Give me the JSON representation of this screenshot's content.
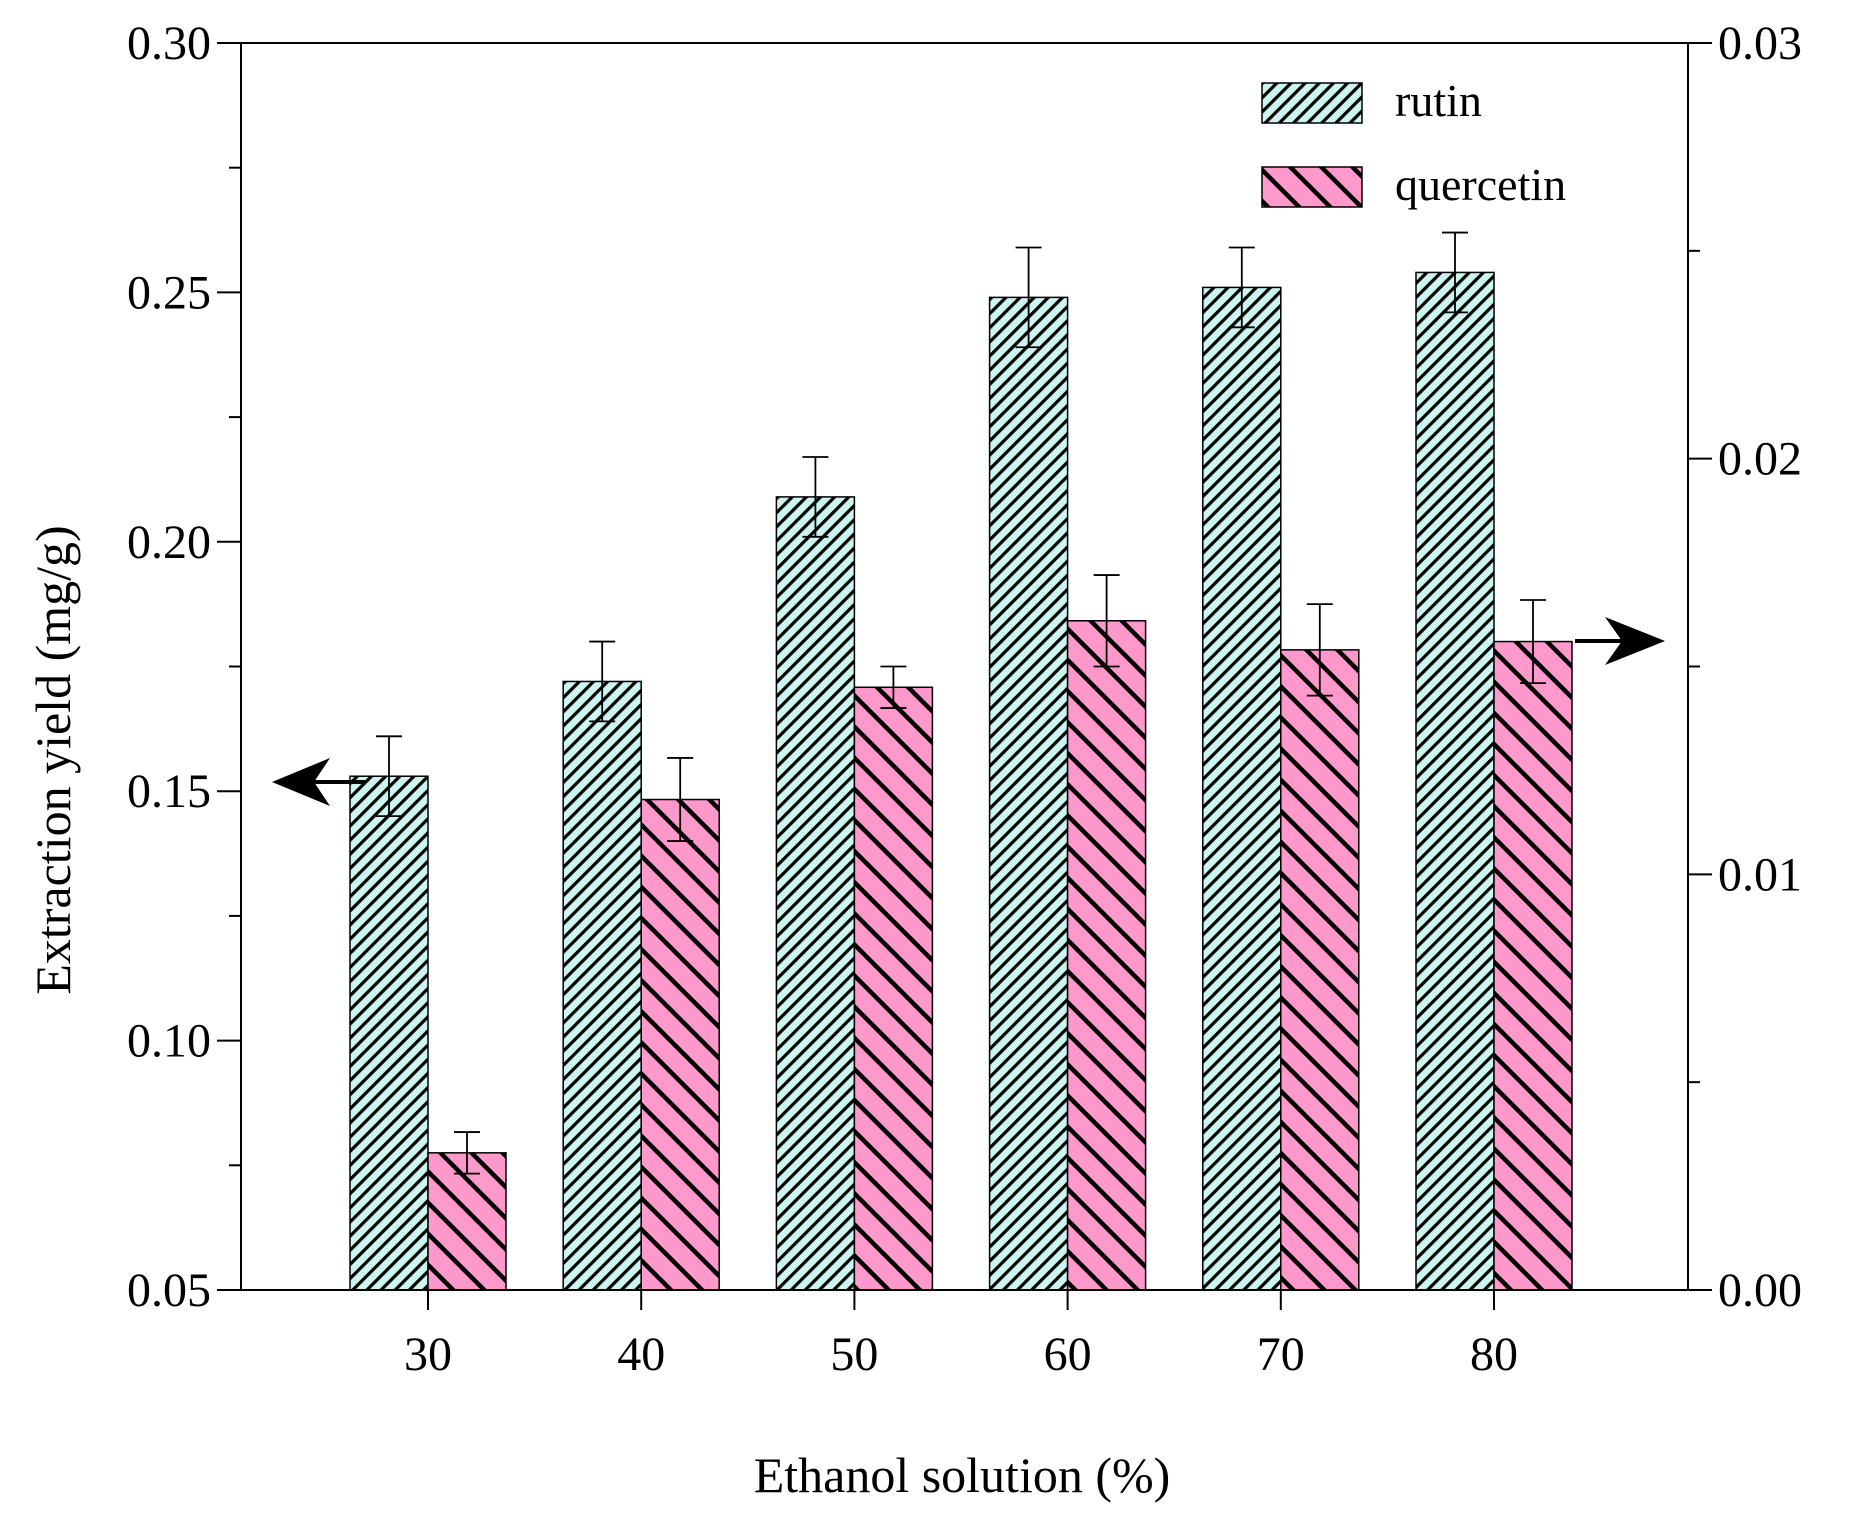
{
  "chart_data": {
    "type": "bar",
    "xlabel": "Ethanol solution (%)",
    "ylabel": "Extraction yield (mg/g)",
    "categories": [
      "30",
      "40",
      "50",
      "60",
      "70",
      "80"
    ],
    "left_axis": {
      "range": [
        0.05,
        0.3
      ],
      "ticks": [
        0.05,
        0.1,
        0.15,
        0.2,
        0.25,
        0.3
      ],
      "tick_labels": [
        "0.05",
        "0.10",
        "0.15",
        "0.20",
        "0.25",
        "0.30"
      ]
    },
    "right_axis": {
      "range": [
        0.0,
        0.03
      ],
      "ticks": [
        0.0,
        0.01,
        0.02,
        0.03
      ],
      "tick_labels": [
        "0.00",
        "0.01",
        "0.02",
        "0.03"
      ]
    },
    "series": [
      {
        "name": "rutin",
        "axis": "left",
        "color": "#ccf5f0",
        "values": [
          0.153,
          0.172,
          0.209,
          0.249,
          0.251,
          0.254
        ],
        "errors": [
          0.008,
          0.008,
          0.008,
          0.01,
          0.008,
          0.008
        ]
      },
      {
        "name": "quercetin",
        "axis": "right",
        "color": "#ff99cc",
        "values": [
          0.0033,
          0.0118,
          0.0145,
          0.0161,
          0.0154,
          0.0156
        ],
        "errors": [
          0.0005,
          0.001,
          0.0005,
          0.0011,
          0.0011,
          0.001
        ]
      }
    ],
    "legend": {
      "position": "top-right",
      "entries": [
        "rutin",
        "quercetin"
      ]
    },
    "annotations": [
      {
        "type": "arrow",
        "direction": "left",
        "series": "rutin",
        "points_to": "left-axis"
      },
      {
        "type": "arrow",
        "direction": "right",
        "series": "quercetin",
        "points_to": "right-axis"
      }
    ]
  }
}
